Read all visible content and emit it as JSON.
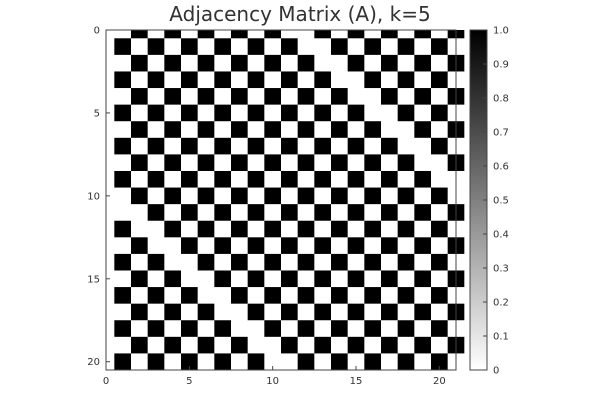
{
  "chart_data": {
    "type": "heatmap",
    "title": "Adjacency Matrix (A), k=5",
    "xlabel": "",
    "ylabel": "",
    "n": 21,
    "k": 5,
    "rule": "A[i][j] = 1 when the cyclic distance min(|i-j|, 21-|i-j|) is odd and ≤ 2k-1 (i.e. 1, 3, 5, 7, 9); otherwise 0",
    "xlim": [
      0,
      21
    ],
    "ylim": [
      20.5,
      0
    ],
    "x_ticks": [
      "0",
      "5",
      "10",
      "15",
      "20"
    ],
    "y_ticks": [
      "0",
      "5",
      "10",
      "15",
      "20"
    ],
    "colorbar": {
      "min": 0.0,
      "max": 1.0,
      "ticks": [
        "0",
        "0.1",
        "0.2",
        "0.3",
        "0.4",
        "0.5",
        "0.6",
        "0.7",
        "0.8",
        "0.9",
        "1.0"
      ],
      "colormap": [
        "#ffffff",
        "#000000"
      ]
    },
    "grid": false,
    "legend": "colorbar at right"
  }
}
